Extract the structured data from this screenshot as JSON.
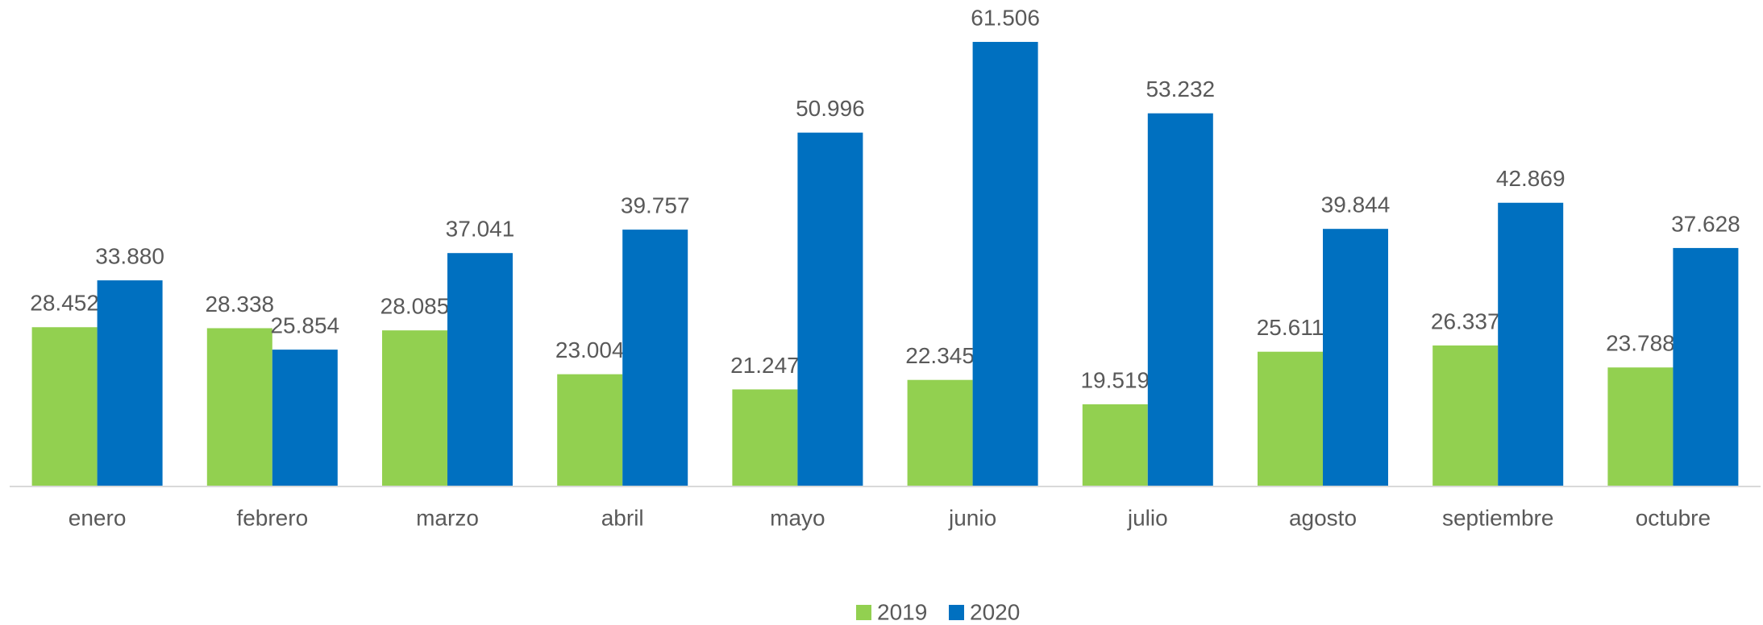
{
  "chart_data": {
    "type": "bar",
    "categories": [
      "enero",
      "febrero",
      "marzo",
      "abril",
      "mayo",
      "junio",
      "julio",
      "agosto",
      "septiembre",
      "octubre"
    ],
    "series": [
      {
        "name": "2019",
        "color": "#92d050",
        "values": [
          28452,
          28338,
          28085,
          23004,
          21247,
          22345,
          19519,
          25611,
          26337,
          23788
        ],
        "value_labels": [
          "28.452",
          "28.338",
          "28.085",
          "23.004",
          "21.247",
          "22.345",
          "19.519",
          "25.611",
          "26.337",
          "23.788"
        ]
      },
      {
        "name": "2020",
        "color": "#0070c0",
        "values": [
          33880,
          25854,
          37041,
          39757,
          50996,
          61506,
          53232,
          39844,
          42869,
          37628
        ],
        "value_labels": [
          "33.880",
          "25.854",
          "37.041",
          "39.757",
          "50.996",
          "61.506",
          "53.232",
          "39.844",
          "42.869",
          "37.628"
        ]
      }
    ],
    "ylim": [
      10000,
      70000
    ],
    "legend": "bottom"
  }
}
